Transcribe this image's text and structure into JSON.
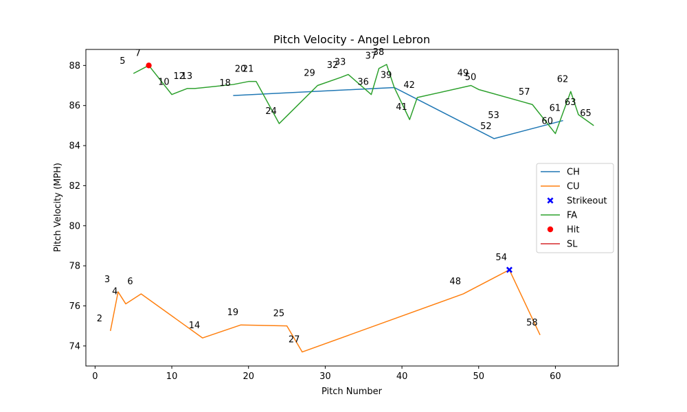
{
  "chart_data": {
    "type": "line",
    "title": "Pitch Velocity - Angel Lebron",
    "xlabel": "Pitch Number",
    "ylabel": "Pitch Velocity (MPH)",
    "xlim": [
      -1.2,
      68.2
    ],
    "ylim": [
      73.0,
      88.8
    ],
    "xticks": [
      0,
      10,
      20,
      30,
      40,
      50,
      60
    ],
    "yticks": [
      74,
      76,
      78,
      80,
      82,
      84,
      86,
      88
    ],
    "grid": false,
    "legend_position": "center-right",
    "series": [
      {
        "name": "CH",
        "color": "#1f77b4",
        "x": [
          18,
          39,
          52,
          61
        ],
        "y": [
          86.5,
          86.9,
          84.35,
          85.25
        ]
      },
      {
        "name": "CU",
        "color": "#ff7f0e",
        "x": [
          2,
          3,
          4,
          6,
          14,
          19,
          25,
          27,
          48,
          54,
          58
        ],
        "y": [
          74.75,
          76.7,
          76.1,
          76.6,
          74.4,
          75.05,
          75.0,
          73.7,
          76.6,
          77.8,
          74.55
        ]
      },
      {
        "name": "FA",
        "color": "#2ca02c",
        "x": [
          5,
          7,
          10,
          12,
          13,
          18,
          20,
          21,
          24,
          29,
          32,
          33,
          36,
          37,
          38,
          39,
          41,
          42,
          49,
          50,
          57,
          60,
          62,
          63,
          65
        ],
        "y": [
          87.6,
          88.0,
          86.55,
          86.85,
          86.85,
          87.05,
          87.2,
          87.2,
          85.1,
          87.0,
          87.4,
          87.55,
          86.55,
          87.85,
          88.05,
          86.9,
          85.3,
          86.4,
          87.0,
          86.8,
          86.05,
          84.6,
          86.7,
          85.55,
          85.0
        ]
      },
      {
        "name": "SL",
        "color": "#d62728",
        "x": [],
        "y": []
      }
    ],
    "markers": [
      {
        "name": "Strikeout",
        "color": "#0000ff",
        "shape": "x",
        "x": 54,
        "y": 77.8
      },
      {
        "name": "Hit",
        "color": "#ff0000",
        "shape": "circle",
        "x": 7,
        "y": 88.0
      }
    ],
    "point_labels": [
      {
        "text": "2",
        "x": 2,
        "y": 74.75
      },
      {
        "text": "3",
        "x": 3,
        "y": 76.7
      },
      {
        "text": "4",
        "x": 4,
        "y": 76.1
      },
      {
        "text": "6",
        "x": 6,
        "y": 76.6
      },
      {
        "text": "14",
        "x": 14,
        "y": 74.4
      },
      {
        "text": "19",
        "x": 19,
        "y": 75.05
      },
      {
        "text": "25",
        "x": 25,
        "y": 75.0
      },
      {
        "text": "27",
        "x": 27,
        "y": 73.7
      },
      {
        "text": "48",
        "x": 48,
        "y": 76.6
      },
      {
        "text": "54",
        "x": 54,
        "y": 77.8
      },
      {
        "text": "58",
        "x": 58,
        "y": 74.55
      },
      {
        "text": "5",
        "x": 5,
        "y": 87.6
      },
      {
        "text": "7",
        "x": 7,
        "y": 88.0
      },
      {
        "text": "10",
        "x": 10,
        "y": 86.55
      },
      {
        "text": "12",
        "x": 12,
        "y": 86.85
      },
      {
        "text": "13",
        "x": 13,
        "y": 86.85
      },
      {
        "text": "18",
        "x": 18,
        "y": 86.5
      },
      {
        "text": "20",
        "x": 20,
        "y": 87.2
      },
      {
        "text": "21",
        "x": 21,
        "y": 87.2
      },
      {
        "text": "24",
        "x": 24,
        "y": 85.1
      },
      {
        "text": "29",
        "x": 29,
        "y": 87.0
      },
      {
        "text": "32",
        "x": 32,
        "y": 87.4
      },
      {
        "text": "33",
        "x": 33,
        "y": 87.55
      },
      {
        "text": "36",
        "x": 36,
        "y": 86.55
      },
      {
        "text": "37",
        "x": 37,
        "y": 87.85
      },
      {
        "text": "38",
        "x": 38,
        "y": 88.05
      },
      {
        "text": "39",
        "x": 39,
        "y": 86.9
      },
      {
        "text": "41",
        "x": 41,
        "y": 85.3
      },
      {
        "text": "42",
        "x": 42,
        "y": 86.4
      },
      {
        "text": "49",
        "x": 49,
        "y": 87.0
      },
      {
        "text": "50",
        "x": 50,
        "y": 86.8
      },
      {
        "text": "52",
        "x": 52,
        "y": 84.35
      },
      {
        "text": "53",
        "x": 53,
        "y": 84.9
      },
      {
        "text": "57",
        "x": 57,
        "y": 86.05
      },
      {
        "text": "60",
        "x": 60,
        "y": 84.6
      },
      {
        "text": "61",
        "x": 61,
        "y": 85.25
      },
      {
        "text": "62",
        "x": 62,
        "y": 86.7
      },
      {
        "text": "63",
        "x": 63,
        "y": 85.55
      },
      {
        "text": "65",
        "x": 65,
        "y": 85.0
      }
    ],
    "legend": [
      "CH",
      "CU",
      "Strikeout",
      "FA",
      "Hit",
      "SL"
    ]
  }
}
